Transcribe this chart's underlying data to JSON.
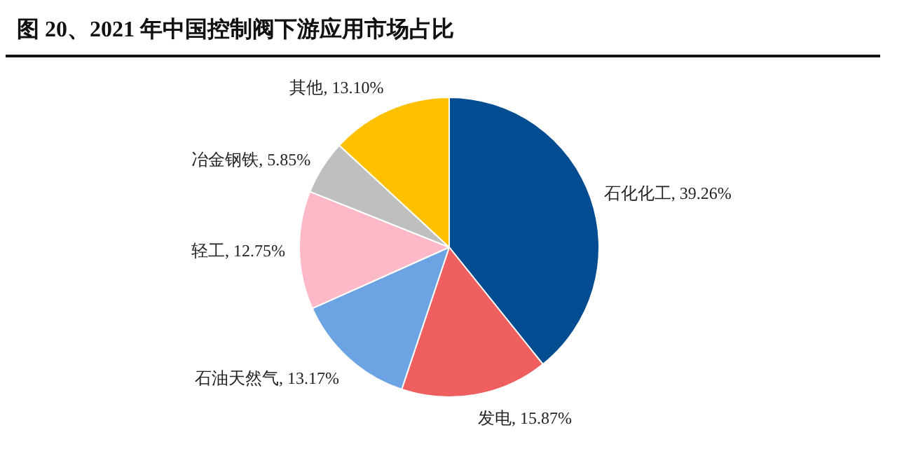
{
  "chart_data": {
    "type": "pie",
    "title": "图 20、2021 年中国控制阀下游应用市场占比",
    "categories": [
      "石化化工",
      "发电",
      "石油天然气",
      "轻工",
      "冶金钢铁",
      "其他"
    ],
    "values": [
      39.26,
      15.87,
      13.17,
      12.75,
      5.85,
      13.1
    ],
    "value_labels": [
      "39.26%",
      "15.87%",
      "13.17%",
      "12.75%",
      "5.85%",
      "13.10%"
    ],
    "colors": [
      "#024c92",
      "#ef5f5f",
      "#6ca3e3",
      "#fdb9c8",
      "#bfbfbf",
      "#ffc000"
    ]
  }
}
